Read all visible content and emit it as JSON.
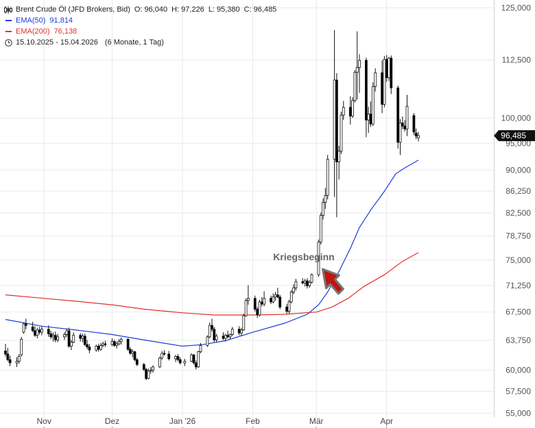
{
  "legend": {
    "instrument": "Brent Crude Öl (JFD Brokers, Bid)",
    "ohlc": {
      "o_label": "O:",
      "o": "96,040",
      "h_label": "H:",
      "h": "97,226",
      "l_label": "L:",
      "l": "95,380",
      "c_label": "C:",
      "c": "96,485"
    },
    "ema50": {
      "label": "EMA(50)",
      "value": "91,814",
      "color": "#1e3ad6"
    },
    "ema200": {
      "label": "EMA(200)",
      "value": "76,138",
      "color": "#e0302a"
    },
    "range": "15.10.2025 - 15.04.2026",
    "period": "(6 Monate, 1 Tag)",
    "icons": [
      "candlestick-icon",
      "clock-icon"
    ]
  },
  "chart_data": {
    "type": "candlestick",
    "annotation": "Kriegsbeginn",
    "annotation_color": "#c0160f",
    "last_price_label": "96,485",
    "y_scale": "log",
    "ylim": [
      54.5,
      127
    ],
    "y_ticks": [
      55,
      57.5,
      60,
      63.75,
      67.5,
      71.25,
      75,
      78.75,
      82.5,
      86.25,
      90,
      95,
      100,
      112.5,
      125
    ],
    "y_tick_labels": [
      "55,000",
      "57,500",
      "60,000",
      "63,750",
      "67,500",
      "71,250",
      "75,000",
      "78,750",
      "82,500",
      "86,250",
      "90,000",
      "95,000",
      "100,000",
      "112,500",
      "125,000"
    ],
    "x_labels": [
      "Nov",
      "Dez",
      "Jan '26",
      "Feb",
      "Mär",
      "Apr"
    ],
    "x_label_dates": [
      "2025-11-01",
      "2025-12-01",
      "2026-01-01",
      "2026-02-01",
      "2026-03-01",
      "2026-04-01"
    ],
    "x_range": [
      "2025-10-15",
      "2026-04-15"
    ],
    "annotation_date": "2026-03-02",
    "up_color": "#ffffff",
    "down_color": "#000000",
    "candles": [
      [
        "2025-10-15",
        62.4,
        63.3,
        61.7,
        62.0
      ],
      [
        "2025-10-16",
        62.0,
        62.8,
        61.1,
        61.3
      ],
      [
        "2025-10-17",
        61.3,
        61.8,
        60.5,
        60.9
      ],
      [
        "2025-10-20",
        60.9,
        61.6,
        60.4,
        61.1
      ],
      [
        "2025-10-21",
        61.1,
        62.0,
        60.8,
        61.7
      ],
      [
        "2025-10-22",
        61.9,
        64.2,
        61.7,
        63.9
      ],
      [
        "2025-10-23",
        64.8,
        66.1,
        64.6,
        65.9
      ],
      [
        "2025-10-24",
        65.9,
        66.6,
        65.2,
        65.7
      ],
      [
        "2025-10-27",
        65.5,
        66.2,
        64.8,
        65.0
      ],
      [
        "2025-10-28",
        65.0,
        65.6,
        64.2,
        64.4
      ],
      [
        "2025-10-29",
        64.4,
        65.4,
        64.0,
        65.1
      ],
      [
        "2025-10-30",
        65.1,
        65.5,
        64.5,
        64.8
      ],
      [
        "2025-10-31",
        64.8,
        65.6,
        64.4,
        65.2
      ],
      [
        "2025-11-03",
        65.2,
        65.7,
        64.2,
        64.6
      ],
      [
        "2025-11-04",
        64.6,
        65.0,
        63.9,
        64.2
      ],
      [
        "2025-11-05",
        64.2,
        64.8,
        63.6,
        64.4
      ],
      [
        "2025-11-06",
        64.4,
        64.9,
        63.5,
        63.8
      ],
      [
        "2025-11-07",
        63.8,
        64.6,
        63.5,
        64.2
      ],
      [
        "2025-11-10",
        64.2,
        64.8,
        63.8,
        64.5
      ],
      [
        "2025-11-11",
        64.5,
        65.3,
        64.2,
        65.0
      ],
      [
        "2025-11-12",
        65.0,
        65.4,
        62.8,
        63.0
      ],
      [
        "2025-11-13",
        63.0,
        63.8,
        62.5,
        63.5
      ],
      [
        "2025-11-14",
        63.5,
        64.8,
        63.4,
        64.4
      ],
      [
        "2025-11-17",
        64.4,
        64.7,
        63.6,
        64.0
      ],
      [
        "2025-11-18",
        64.0,
        64.6,
        63.5,
        64.3
      ],
      [
        "2025-11-19",
        64.3,
        64.6,
        63.0,
        63.2
      ],
      [
        "2025-11-20",
        63.2,
        63.8,
        62.6,
        62.9
      ],
      [
        "2025-11-21",
        62.9,
        63.3,
        62.1,
        62.5
      ],
      [
        "2025-11-24",
        62.5,
        63.2,
        62.3,
        63.0
      ],
      [
        "2025-11-25",
        63.0,
        63.3,
        62.3,
        62.6
      ],
      [
        "2025-11-26",
        62.6,
        63.4,
        62.4,
        63.1
      ],
      [
        "2025-11-27",
        63.1,
        63.6,
        62.9,
        63.3
      ],
      [
        "2025-11-28",
        63.3,
        63.7,
        62.9,
        63.2
      ],
      [
        "2025-12-01",
        63.2,
        64.0,
        63.0,
        63.6
      ],
      [
        "2025-12-02",
        63.6,
        63.8,
        62.9,
        63.1
      ],
      [
        "2025-12-03",
        63.1,
        63.6,
        62.7,
        63.3
      ],
      [
        "2025-12-04",
        63.3,
        63.9,
        63.1,
        63.6
      ],
      [
        "2025-12-05",
        63.6,
        64.1,
        63.2,
        63.9
      ],
      [
        "2025-12-08",
        63.9,
        64.0,
        62.4,
        62.6
      ],
      [
        "2025-12-09",
        62.6,
        62.9,
        61.9,
        62.1
      ],
      [
        "2025-12-10",
        62.1,
        62.6,
        61.6,
        62.3
      ],
      [
        "2025-12-11",
        62.3,
        62.4,
        61.1,
        61.3
      ],
      [
        "2025-12-12",
        61.3,
        61.5,
        60.5,
        60.7
      ],
      [
        "2025-12-15",
        60.7,
        60.9,
        59.9,
        60.1
      ],
      [
        "2025-12-16",
        60.1,
        60.3,
        58.8,
        59.0
      ],
      [
        "2025-12-17",
        59.0,
        60.2,
        58.9,
        59.9
      ],
      [
        "2025-12-18",
        59.9,
        60.4,
        59.6,
        60.0
      ],
      [
        "2025-12-19",
        60.0,
        60.6,
        59.7,
        60.4
      ],
      [
        "2025-12-22",
        60.4,
        61.7,
        60.3,
        61.5
      ],
      [
        "2025-12-23",
        61.5,
        62.4,
        61.3,
        62.1
      ],
      [
        "2025-12-24",
        62.1,
        62.5,
        61.8,
        62.0
      ],
      [
        "2025-12-26",
        62.0,
        62.4,
        61.2,
        61.4
      ],
      [
        "2025-12-29",
        61.4,
        61.9,
        61.0,
        61.7
      ],
      [
        "2025-12-30",
        61.7,
        62.0,
        61.1,
        61.3
      ],
      [
        "2025-12-31",
        61.3,
        61.6,
        60.7,
        60.9
      ],
      [
        "2026-01-02",
        60.9,
        61.4,
        60.5,
        61.1
      ],
      [
        "2026-01-05",
        61.1,
        62.1,
        61.0,
        61.9
      ],
      [
        "2026-01-06",
        61.9,
        62.0,
        60.7,
        60.9
      ],
      [
        "2026-01-07",
        60.9,
        61.2,
        60.1,
        60.4
      ],
      [
        "2026-01-08",
        60.4,
        62.4,
        60.3,
        62.3
      ],
      [
        "2026-01-09",
        62.3,
        63.4,
        62.1,
        63.1
      ],
      [
        "2026-01-12",
        63.1,
        64.4,
        62.9,
        64.2
      ],
      [
        "2026-01-13",
        64.2,
        66.1,
        64.0,
        65.7
      ],
      [
        "2026-01-14",
        65.7,
        66.6,
        64.9,
        65.2
      ],
      [
        "2026-01-15",
        65.2,
        65.5,
        63.5,
        63.8
      ],
      [
        "2026-01-16",
        63.8,
        64.6,
        63.5,
        64.3
      ],
      [
        "2026-01-19",
        64.3,
        64.8,
        63.8,
        64.0
      ],
      [
        "2026-01-20",
        64.0,
        64.6,
        63.6,
        64.4
      ],
      [
        "2026-01-21",
        64.4,
        65.0,
        64.0,
        64.2
      ],
      [
        "2026-01-22",
        64.2,
        64.6,
        63.9,
        64.5
      ],
      [
        "2026-01-23",
        64.5,
        65.5,
        64.3,
        65.2
      ],
      [
        "2026-01-26",
        65.2,
        65.6,
        64.4,
        64.7
      ],
      [
        "2026-01-27",
        64.7,
        65.4,
        64.3,
        65.1
      ],
      [
        "2026-01-28",
        65.1,
        67.3,
        65.0,
        67.0
      ],
      [
        "2026-01-29",
        67.0,
        69.4,
        66.9,
        69.1
      ],
      [
        "2026-01-30",
        69.1,
        71.3,
        68.5,
        69.4
      ],
      [
        "2026-02-02",
        69.4,
        69.8,
        67.6,
        67.9
      ],
      [
        "2026-02-03",
        67.9,
        68.2,
        66.7,
        67.1
      ],
      [
        "2026-02-04",
        67.1,
        69.2,
        66.9,
        68.9
      ],
      [
        "2026-02-05",
        68.9,
        69.6,
        68.3,
        68.6
      ],
      [
        "2026-02-06",
        68.6,
        70.4,
        68.3,
        69.4
      ],
      [
        "2026-02-09",
        69.4,
        69.8,
        68.6,
        68.9
      ],
      [
        "2026-02-10",
        68.9,
        70.1,
        68.7,
        69.6
      ],
      [
        "2026-02-11",
        69.6,
        70.3,
        69.1,
        69.9
      ],
      [
        "2026-02-12",
        69.9,
        70.9,
        69.4,
        69.6
      ],
      [
        "2026-02-13",
        69.6,
        69.9,
        67.9,
        68.2
      ],
      [
        "2026-02-16",
        68.2,
        68.6,
        67.3,
        67.6
      ],
      [
        "2026-02-17",
        67.6,
        69.2,
        67.3,
        68.9
      ],
      [
        "2026-02-18",
        68.9,
        70.6,
        68.7,
        70.3
      ],
      [
        "2026-02-19",
        70.3,
        71.4,
        70.0,
        70.9
      ],
      [
        "2026-02-20",
        70.9,
        72.2,
        70.5,
        71.8
      ],
      [
        "2026-02-23",
        71.8,
        72.3,
        71.4,
        71.6
      ],
      [
        "2026-02-24",
        71.6,
        72.2,
        71.1,
        71.9
      ],
      [
        "2026-02-25",
        71.9,
        72.3,
        70.8,
        71.2
      ],
      [
        "2026-02-26",
        71.2,
        72.0,
        70.9,
        71.7
      ],
      [
        "2026-02-27",
        71.7,
        73.0,
        71.5,
        72.8
      ],
      [
        "2026-03-02",
        72.8,
        78.2,
        72.5,
        77.8
      ],
      [
        "2026-03-03",
        77.8,
        82.6,
        77.4,
        82.1
      ],
      [
        "2026-03-04",
        82.1,
        85.0,
        81.4,
        84.3
      ],
      [
        "2026-03-05",
        84.3,
        86.8,
        83.2,
        85.5
      ],
      [
        "2026-03-06",
        85.5,
        92.8,
        84.8,
        92.0
      ],
      [
        "2026-03-09",
        92.0,
        119.5,
        85.2,
        108.0
      ],
      [
        "2026-03-10",
        108.0,
        109.5,
        81.8,
        91.5
      ],
      [
        "2026-03-11",
        91.5,
        94.5,
        88.3,
        93.5
      ],
      [
        "2026-03-12",
        93.5,
        101.3,
        93.0,
        100.6
      ],
      [
        "2026-03-13",
        100.6,
        103.5,
        99.6,
        102.2
      ],
      [
        "2026-03-16",
        102.2,
        104.5,
        98.7,
        100.4
      ],
      [
        "2026-03-17",
        100.4,
        104.3,
        100.0,
        103.6
      ],
      [
        "2026-03-18",
        103.6,
        110.2,
        103.2,
        109.7
      ],
      [
        "2026-03-19",
        109.7,
        119.2,
        103.8,
        110.8
      ],
      [
        "2026-03-20",
        110.8,
        113.8,
        105.2,
        112.4
      ],
      [
        "2026-03-23",
        112.4,
        113.0,
        96.2,
        99.6
      ],
      [
        "2026-03-24",
        99.6,
        102.3,
        97.0,
        100.8
      ],
      [
        "2026-03-25",
        100.8,
        103.4,
        98.2,
        98.8
      ],
      [
        "2026-03-26",
        98.8,
        107.5,
        98.4,
        106.6
      ],
      [
        "2026-03-27",
        106.6,
        110.6,
        105.5,
        109.6
      ],
      [
        "2026-03-30",
        109.6,
        112.4,
        101.0,
        102.8
      ],
      [
        "2026-03-31",
        102.8,
        113.4,
        102.2,
        112.6
      ],
      [
        "2026-04-01",
        112.6,
        113.6,
        107.6,
        108.5
      ],
      [
        "2026-04-02",
        108.5,
        113.2,
        107.8,
        112.9
      ],
      [
        "2026-04-03",
        112.9,
        113.5,
        105.0,
        106.3
      ],
      [
        "2026-04-06",
        106.3,
        106.8,
        94.0,
        95.2
      ],
      [
        "2026-04-07",
        95.2,
        99.8,
        92.8,
        99.0
      ],
      [
        "2026-04-08",
        99.0,
        100.3,
        97.8,
        98.4
      ],
      [
        "2026-04-09",
        98.4,
        99.6,
        97.3,
        97.8
      ],
      [
        "2026-04-10",
        97.8,
        104.8,
        96.4,
        102.4
      ],
      [
        "2026-04-13",
        100.5,
        101.0,
        96.6,
        97.2
      ],
      [
        "2026-04-14",
        97.0,
        97.9,
        95.8,
        96.4
      ],
      [
        "2026-04-15",
        96.04,
        97.226,
        95.38,
        96.485
      ]
    ],
    "series": [
      {
        "name": "EMA(50)",
        "color": "#1e3ad6",
        "points": [
          [
            "2025-10-15",
            66.5
          ],
          [
            "2025-10-31",
            65.6
          ],
          [
            "2025-11-15",
            65.1
          ],
          [
            "2025-12-01",
            64.5
          ],
          [
            "2025-12-15",
            63.8
          ],
          [
            "2026-01-01",
            63.0
          ],
          [
            "2026-01-10",
            63.2
          ],
          [
            "2026-01-20",
            63.7
          ],
          [
            "2026-02-01",
            64.8
          ],
          [
            "2026-02-15",
            66.0
          ],
          [
            "2026-02-25",
            67.2
          ],
          [
            "2026-03-02",
            68.5
          ],
          [
            "2026-03-06",
            70.3
          ],
          [
            "2026-03-11",
            73.3
          ],
          [
            "2026-03-16",
            76.8
          ],
          [
            "2026-03-20",
            80.1
          ],
          [
            "2026-03-25",
            83.0
          ],
          [
            "2026-03-31",
            86.2
          ],
          [
            "2026-04-05",
            89.3
          ],
          [
            "2026-04-09",
            90.4
          ],
          [
            "2026-04-15",
            91.814
          ]
        ]
      },
      {
        "name": "EMA(200)",
        "color": "#e0302a",
        "points": [
          [
            "2025-10-15",
            69.9
          ],
          [
            "2025-11-01",
            69.4
          ],
          [
            "2025-11-15",
            69.0
          ],
          [
            "2025-12-01",
            68.5
          ],
          [
            "2025-12-15",
            67.9
          ],
          [
            "2026-01-01",
            67.4
          ],
          [
            "2026-01-15",
            67.1
          ],
          [
            "2026-02-01",
            67.1
          ],
          [
            "2026-02-15",
            67.2
          ],
          [
            "2026-03-01",
            67.5
          ],
          [
            "2026-03-08",
            68.2
          ],
          [
            "2026-03-15",
            69.4
          ],
          [
            "2026-03-22",
            71.1
          ],
          [
            "2026-03-31",
            72.8
          ],
          [
            "2026-04-08",
            74.8
          ],
          [
            "2026-04-15",
            76.138
          ]
        ]
      }
    ]
  }
}
